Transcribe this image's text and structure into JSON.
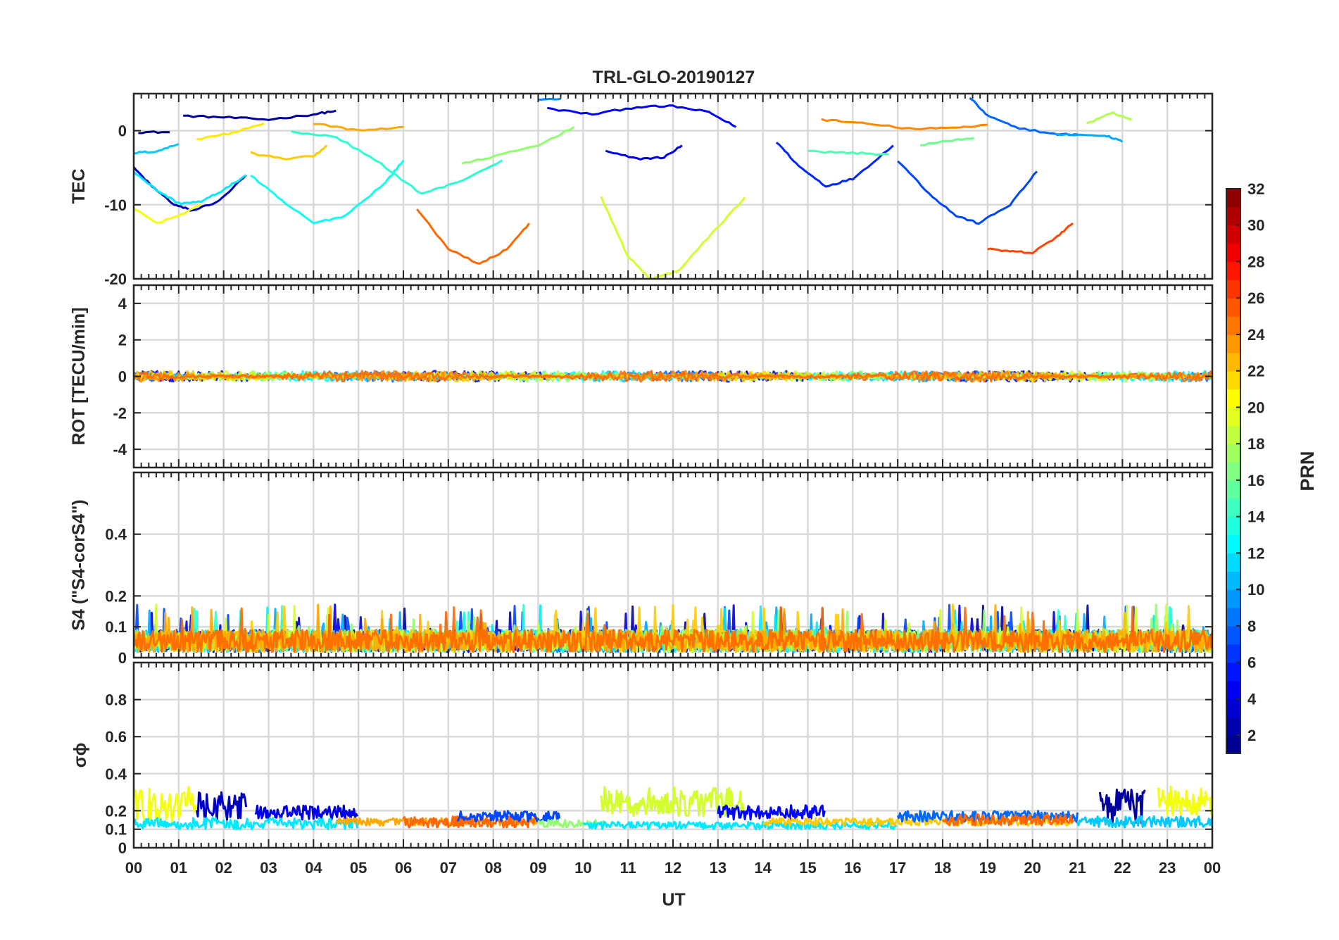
{
  "chart_data": [
    {
      "type": "line",
      "title": "TRL-GLO-20190127",
      "xlabel": "UT",
      "x_ticks": [
        "00",
        "01",
        "02",
        "03",
        "04",
        "05",
        "06",
        "07",
        "08",
        "09",
        "10",
        "11",
        "12",
        "13",
        "14",
        "15",
        "16",
        "17",
        "18",
        "19",
        "20",
        "21",
        "22",
        "23",
        "00"
      ],
      "xlim": [
        0,
        24
      ],
      "panels": [
        {
          "id": "tec",
          "ylabel": "TEC",
          "ylim": [
            -20,
            5
          ],
          "y_ticks": [
            0,
            -10,
            -20
          ],
          "y_tick_labels": [
            "0",
            "-10",
            "-20"
          ],
          "series": [
            {
              "prn": 1,
              "points": [
                [
                  0.1,
                  -0.2
                ],
                [
                  0.8,
                  -0.2
                ]
              ]
            },
            {
              "prn": 2,
              "points": [
                [
                  1.1,
                  2.0
                ],
                [
                  2.0,
                  1.8
                ],
                [
                  3.0,
                  1.5
                ],
                [
                  4.0,
                  2.2
                ],
                [
                  4.5,
                  2.7
                ]
              ]
            },
            {
              "prn": 3,
              "points": [
                [
                  0.0,
                  -5.0
                ],
                [
                  0.4,
                  -7.5
                ],
                [
                  0.9,
                  -10.0
                ],
                [
                  1.3,
                  -10.8
                ],
                [
                  1.9,
                  -9.5
                ],
                [
                  2.5,
                  -6.0
                ]
              ]
            },
            {
              "prn": 4,
              "points": [
                [
                  10.5,
                  -2.8
                ],
                [
                  11.2,
                  -3.8
                ],
                [
                  11.8,
                  -3.6
                ],
                [
                  12.2,
                  -2.0
                ]
              ]
            },
            {
              "prn": 5,
              "points": [
                [
                  9.2,
                  3.0
                ],
                [
                  10.2,
                  2.2
                ],
                [
                  11.2,
                  3.2
                ],
                [
                  12.0,
                  3.3
                ],
                [
                  12.8,
                  2.5
                ],
                [
                  13.4,
                  0.5
                ]
              ]
            },
            {
              "prn": 6,
              "points": [
                [
                  14.3,
                  -1.5
                ],
                [
                  14.8,
                  -4.8
                ],
                [
                  15.4,
                  -7.5
                ],
                [
                  16.0,
                  -6.5
                ],
                [
                  16.9,
                  -2.0
                ]
              ]
            },
            {
              "prn": 7,
              "points": [
                [
                  17.0,
                  -4.0
                ],
                [
                  17.7,
                  -8.5
                ],
                [
                  18.3,
                  -11.5
                ],
                [
                  18.8,
                  -12.5
                ],
                [
                  19.5,
                  -10.0
                ],
                [
                  20.1,
                  -5.5
                ]
              ]
            },
            {
              "prn": 8,
              "points": [
                [
                  18.6,
                  4.5
                ],
                [
                  19.0,
                  2.0
                ],
                [
                  19.6,
                  0.5
                ],
                [
                  20.5,
                  -0.5
                ],
                [
                  21.0,
                  -0.5
                ]
              ]
            },
            {
              "prn": 9,
              "points": [
                [
                  9.0,
                  4.2
                ],
                [
                  9.5,
                  4.3
                ]
              ]
            },
            {
              "prn": 10,
              "points": [
                [
                  20.5,
                  -0.5
                ],
                [
                  21.6,
                  -0.6
                ],
                [
                  22.0,
                  -1.5
                ]
              ]
            },
            {
              "prn": 11,
              "points": [
                [
                  0.0,
                  -3.0
                ],
                [
                  0.5,
                  -2.8
                ],
                [
                  1.0,
                  -1.8
                ]
              ]
            },
            {
              "prn": 12,
              "points": [
                [
                  0.0,
                  -5.5
                ],
                [
                  0.5,
                  -8.0
                ],
                [
                  1.0,
                  -9.8
                ],
                [
                  1.5,
                  -9.6
                ],
                [
                  2.0,
                  -8.0
                ],
                [
                  2.5,
                  -6.0
                ]
              ]
            },
            {
              "prn": 13,
              "points": [
                [
                  2.6,
                  -6.0
                ],
                [
                  3.3,
                  -9.5
                ],
                [
                  4.0,
                  -12.5
                ],
                [
                  4.7,
                  -11.5
                ],
                [
                  5.6,
                  -7.0
                ],
                [
                  6.0,
                  -4.0
                ]
              ]
            },
            {
              "prn": 14,
              "points": [
                [
                  3.5,
                  -0.2
                ],
                [
                  4.5,
                  -0.8
                ],
                [
                  5.5,
                  -4.5
                ],
                [
                  6.4,
                  -8.5
                ],
                [
                  7.2,
                  -7.0
                ],
                [
                  8.2,
                  -4.0
                ]
              ]
            },
            {
              "prn": 15,
              "points": [
                [
                  15.0,
                  -2.8
                ],
                [
                  16.0,
                  -3.0
                ],
                [
                  16.8,
                  -3.2
                ]
              ]
            },
            {
              "prn": 16,
              "points": [
                [
                  17.5,
                  -2.0
                ],
                [
                  18.3,
                  -1.2
                ],
                [
                  18.7,
                  -1.0
                ]
              ]
            },
            {
              "prn": 17,
              "points": [
                [
                  7.3,
                  -4.5
                ],
                [
                  8.0,
                  -3.5
                ],
                [
                  9.0,
                  -2.0
                ],
                [
                  9.8,
                  0.5
                ]
              ]
            },
            {
              "prn": 18,
              "points": [
                [
                  21.2,
                  1.0
                ],
                [
                  21.8,
                  2.4
                ],
                [
                  22.2,
                  1.5
                ]
              ]
            },
            {
              "prn": 19,
              "points": [
                [
                  10.4,
                  -9.0
                ],
                [
                  11.0,
                  -17.0
                ],
                [
                  11.5,
                  -20.0
                ],
                [
                  12.1,
                  -19.0
                ],
                [
                  13.0,
                  -13.0
                ],
                [
                  13.6,
                  -9.0
                ]
              ]
            },
            {
              "prn": 20,
              "points": [
                [
                  0.0,
                  -10.5
                ],
                [
                  0.5,
                  -12.5
                ],
                [
                  1.0,
                  -11.5
                ],
                [
                  1.5,
                  -10.0
                ]
              ]
            },
            {
              "prn": 21,
              "points": [
                [
                  1.4,
                  -1.2
                ],
                [
                  2.2,
                  -0.3
                ],
                [
                  2.9,
                  1.0
                ]
              ]
            },
            {
              "prn": 22,
              "points": [
                [
                  2.6,
                  -3.0
                ],
                [
                  3.3,
                  -3.8
                ],
                [
                  4.0,
                  -3.5
                ],
                [
                  4.3,
                  -2.0
                ]
              ]
            },
            {
              "prn": 23,
              "points": [
                [
                  4.0,
                  1.0
                ],
                [
                  5.0,
                  0.0
                ],
                [
                  6.0,
                  0.5
                ]
              ]
            },
            {
              "prn": 24,
              "points": [
                [
                  15.3,
                  1.5
                ],
                [
                  16.2,
                  1.0
                ],
                [
                  17.4,
                  0.2
                ],
                [
                  18.3,
                  0.4
                ],
                [
                  19.0,
                  0.8
                ]
              ]
            },
            {
              "prn": 25,
              "points": [
                [
                  6.3,
                  -10.5
                ],
                [
                  7.0,
                  -16.0
                ],
                [
                  7.7,
                  -18.0
                ],
                [
                  8.3,
                  -16.0
                ],
                [
                  8.8,
                  -12.5
                ]
              ]
            },
            {
              "prn": 26,
              "points": [
                [
                  19.0,
                  -16.0
                ],
                [
                  19.5,
                  -16.3
                ],
                [
                  20.0,
                  -16.5
                ],
                [
                  20.5,
                  -14.5
                ],
                [
                  20.9,
                  -12.5
                ]
              ]
            }
          ]
        },
        {
          "id": "rot",
          "ylabel": "ROT [TECU/min]",
          "ylim": [
            -5,
            5
          ],
          "y_ticks": [
            4,
            2,
            0,
            -2,
            -4
          ],
          "y_tick_labels": [
            "4",
            "2",
            "0",
            "-2",
            "-4"
          ],
          "band": {
            "center": 0,
            "halfwidth": 0.3
          }
        },
        {
          "id": "s4",
          "ylabel": "S4 (\"S4-corS4\")",
          "ylim": [
            0,
            0.6
          ],
          "y_ticks": [
            0.4,
            0.2,
            0.1,
            0
          ],
          "y_tick_labels": [
            "0.4",
            "0.2",
            "0.1",
            "0"
          ],
          "band": {
            "base": 0.0,
            "typical": 0.06,
            "max": 0.2
          }
        },
        {
          "id": "sigma",
          "ylabel": "σϕ",
          "ylim": [
            0,
            1
          ],
          "y_ticks": [
            0.8,
            0.6,
            0.4,
            0.2,
            0.1,
            0
          ],
          "y_tick_labels": [
            "0.8",
            "0.6",
            "0.4",
            "0.2",
            "0.1",
            "0"
          ],
          "segments": [
            {
              "prn": 20,
              "x": [
                0.0,
                1.4
              ],
              "level": 0.23,
              "amp": 0.1
            },
            {
              "prn": 3,
              "x": [
                1.4,
                2.5
              ],
              "level": 0.22,
              "amp": 0.08
            },
            {
              "prn": 4,
              "x": [
                2.7,
                5.0
              ],
              "level": 0.19,
              "amp": 0.04
            },
            {
              "prn": 12,
              "x": [
                0.0,
                5.0
              ],
              "level": 0.13,
              "amp": 0.03
            },
            {
              "prn": 23,
              "x": [
                4.5,
                9.0
              ],
              "level": 0.14,
              "amp": 0.02
            },
            {
              "prn": 25,
              "x": [
                6.0,
                9.0
              ],
              "level": 0.14,
              "amp": 0.03
            },
            {
              "prn": 7,
              "x": [
                7.2,
                9.5
              ],
              "level": 0.17,
              "amp": 0.03
            },
            {
              "prn": 17,
              "x": [
                9.0,
                10.5
              ],
              "level": 0.13,
              "amp": 0.02
            },
            {
              "prn": 19,
              "x": [
                10.4,
                13.6
              ],
              "level": 0.25,
              "amp": 0.08
            },
            {
              "prn": 5,
              "x": [
                13.0,
                15.4
              ],
              "level": 0.19,
              "amp": 0.04
            },
            {
              "prn": 12,
              "x": [
                10.0,
                17.0
              ],
              "level": 0.12,
              "amp": 0.02
            },
            {
              "prn": 22,
              "x": [
                14.0,
                21.0
              ],
              "level": 0.14,
              "amp": 0.02
            },
            {
              "prn": 8,
              "x": [
                17.0,
                21.0
              ],
              "level": 0.17,
              "amp": 0.03
            },
            {
              "prn": 25,
              "x": [
                18.0,
                20.9
              ],
              "level": 0.15,
              "amp": 0.03
            },
            {
              "prn": 2,
              "x": [
                21.5,
                22.5
              ],
              "level": 0.22,
              "amp": 0.1
            },
            {
              "prn": 20,
              "x": [
                22.8,
                24.0
              ],
              "level": 0.25,
              "amp": 0.08
            },
            {
              "prn": 11,
              "x": [
                21.0,
                24.0
              ],
              "level": 0.14,
              "amp": 0.03
            }
          ]
        }
      ],
      "colorbar": {
        "label": "PRN",
        "range": [
          1,
          32
        ],
        "ticks": [
          "32",
          "30",
          "28",
          "26",
          "24",
          "22",
          "20",
          "18",
          "16",
          "14",
          "12",
          "10",
          "8",
          "6",
          "4",
          "2"
        ]
      }
    }
  ]
}
